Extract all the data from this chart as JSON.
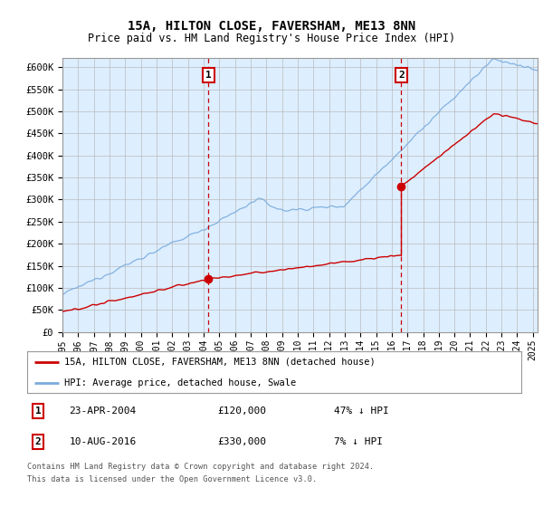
{
  "title": "15A, HILTON CLOSE, FAVERSHAM, ME13 8NN",
  "subtitle": "Price paid vs. HM Land Registry's House Price Index (HPI)",
  "ylabel_ticks": [
    "£0",
    "£50K",
    "£100K",
    "£150K",
    "£200K",
    "£250K",
    "£300K",
    "£350K",
    "£400K",
    "£450K",
    "£500K",
    "£550K",
    "£600K"
  ],
  "ylim": [
    0,
    620000
  ],
  "xlim_start": 1995.0,
  "xlim_end": 2025.3,
  "sale1_x": 2004.31,
  "sale1_y": 120000,
  "sale1_label": "1",
  "sale2_x": 2016.61,
  "sale2_y": 330000,
  "sale2_label": "2",
  "legend_line1": "15A, HILTON CLOSE, FAVERSHAM, ME13 8NN (detached house)",
  "legend_line2": "HPI: Average price, detached house, Swale",
  "footer1": "Contains HM Land Registry data © Crown copyright and database right 2024.",
  "footer2": "This data is licensed under the Open Government Licence v3.0.",
  "price_color": "#cc0000",
  "hpi_color": "#7aabdc",
  "background_color": "#ddeeff",
  "plot_bg": "#ffffff",
  "grid_color": "#bbbbbb",
  "vline_color": "#cc0000"
}
